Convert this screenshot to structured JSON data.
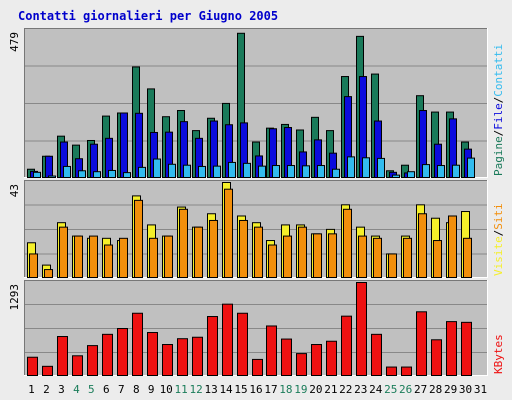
{
  "title": "Contatti giornalieri per Giugno 2005",
  "colors": {
    "background": "#ececec",
    "plot_bg": "#c0c0c0",
    "title": "#0000cc",
    "pages": "#1a7a5a",
    "files": "#0b0bdd",
    "contacts": "#33bbee",
    "visits": "#f5ef2a",
    "sites": "#f28f0c",
    "kbytes": "#ee1111",
    "day_normal": "#000000",
    "day_weekend": "#1b7d5a"
  },
  "chart_data": [
    {
      "type": "bar",
      "panel": "top",
      "y_max_label": "479",
      "ylim": [
        0,
        479
      ],
      "grid": true,
      "legend": [
        "Pagine",
        "File",
        "Contatti"
      ],
      "categories": [
        "1",
        "2",
        "3",
        "4",
        "5",
        "6",
        "7",
        "8",
        "9",
        "10",
        "11",
        "12",
        "13",
        "14",
        "15",
        "16",
        "17",
        "18",
        "19",
        "20",
        "21",
        "22",
        "23",
        "24",
        "25",
        "26",
        "27",
        "28",
        "29",
        "30",
        "31"
      ],
      "series": [
        {
          "name": "Pagine",
          "values": [
            30,
            72,
            137,
            108,
            123,
            202,
            212,
            361,
            290,
            200,
            220,
            155,
            195,
            243,
            470,
            118,
            163,
            175,
            157,
            198,
            155,
            330,
            460,
            338,
            25,
            43,
            268,
            215,
            215,
            118,
            0
          ]
        },
        {
          "name": "File",
          "values": [
            23,
            72,
            118,
            64,
            111,
            130,
            212,
            211,
            149,
            150,
            184,
            130,
            186,
            174,
            180,
            73,
            161,
            165,
            86,
            125,
            82,
            265,
            330,
            186,
            20,
            18,
            220,
            111,
            193,
            95,
            0
          ]
        },
        {
          "name": "Contatti",
          "values": [
            20,
            8,
            39,
            25,
            22,
            26,
            19,
            36,
            63,
            46,
            43,
            39,
            40,
            52,
            49,
            40,
            42,
            42,
            41,
            42,
            30,
            70,
            67,
            65,
            11,
            22,
            45,
            42,
            43,
            66,
            0
          ]
        }
      ]
    },
    {
      "type": "bar",
      "panel": "middle",
      "y_max_label": "43",
      "ylim": [
        0,
        43
      ],
      "grid": true,
      "legend": [
        "Visite",
        "Siti"
      ],
      "categories": [
        "1",
        "2",
        "3",
        "4",
        "5",
        "6",
        "7",
        "8",
        "9",
        "10",
        "11",
        "12",
        "13",
        "14",
        "15",
        "16",
        "17",
        "18",
        "19",
        "20",
        "21",
        "22",
        "23",
        "24",
        "25",
        "26",
        "27",
        "28",
        "29",
        "30",
        "31"
      ],
      "series": [
        {
          "name": "Visite",
          "values": [
            16,
            6,
            25,
            19,
            18,
            18,
            17,
            37,
            24,
            19,
            32,
            23,
            29,
            43,
            28,
            25,
            17,
            24,
            24,
            20,
            22,
            33,
            23,
            19,
            11,
            19,
            33,
            27,
            25,
            30,
            0
          ]
        },
        {
          "name": "Siti",
          "values": [
            11,
            4,
            23,
            19,
            19,
            15,
            18,
            35,
            18,
            19,
            31,
            23,
            26,
            40,
            26,
            23,
            15,
            19,
            23,
            20,
            20,
            31,
            19,
            18,
            11,
            18,
            29,
            17,
            28,
            18,
            0
          ]
        }
      ]
    },
    {
      "type": "bar",
      "panel": "bottom",
      "y_max_label": "1293",
      "ylim": [
        0,
        1293
      ],
      "grid": true,
      "legend": [
        "KBytes"
      ],
      "categories": [
        "1",
        "2",
        "3",
        "4",
        "5",
        "6",
        "7",
        "8",
        "9",
        "10",
        "11",
        "12",
        "13",
        "14",
        "15",
        "16",
        "17",
        "18",
        "19",
        "20",
        "21",
        "22",
        "23",
        "24",
        "25",
        "26",
        "27",
        "28",
        "29",
        "30",
        "31"
      ],
      "series": [
        {
          "name": "KBytes",
          "values": [
            265,
            140,
            550,
            285,
            425,
            580,
            660,
            870,
            605,
            440,
            520,
            540,
            825,
            995,
            870,
            235,
            695,
            515,
            315,
            440,
            485,
            830,
            1293,
            580,
            130,
            130,
            890,
            505,
            755,
            745,
            0
          ]
        }
      ]
    }
  ],
  "weekend_days": [
    "4",
    "5",
    "11",
    "12",
    "18",
    "19",
    "25",
    "26"
  ]
}
